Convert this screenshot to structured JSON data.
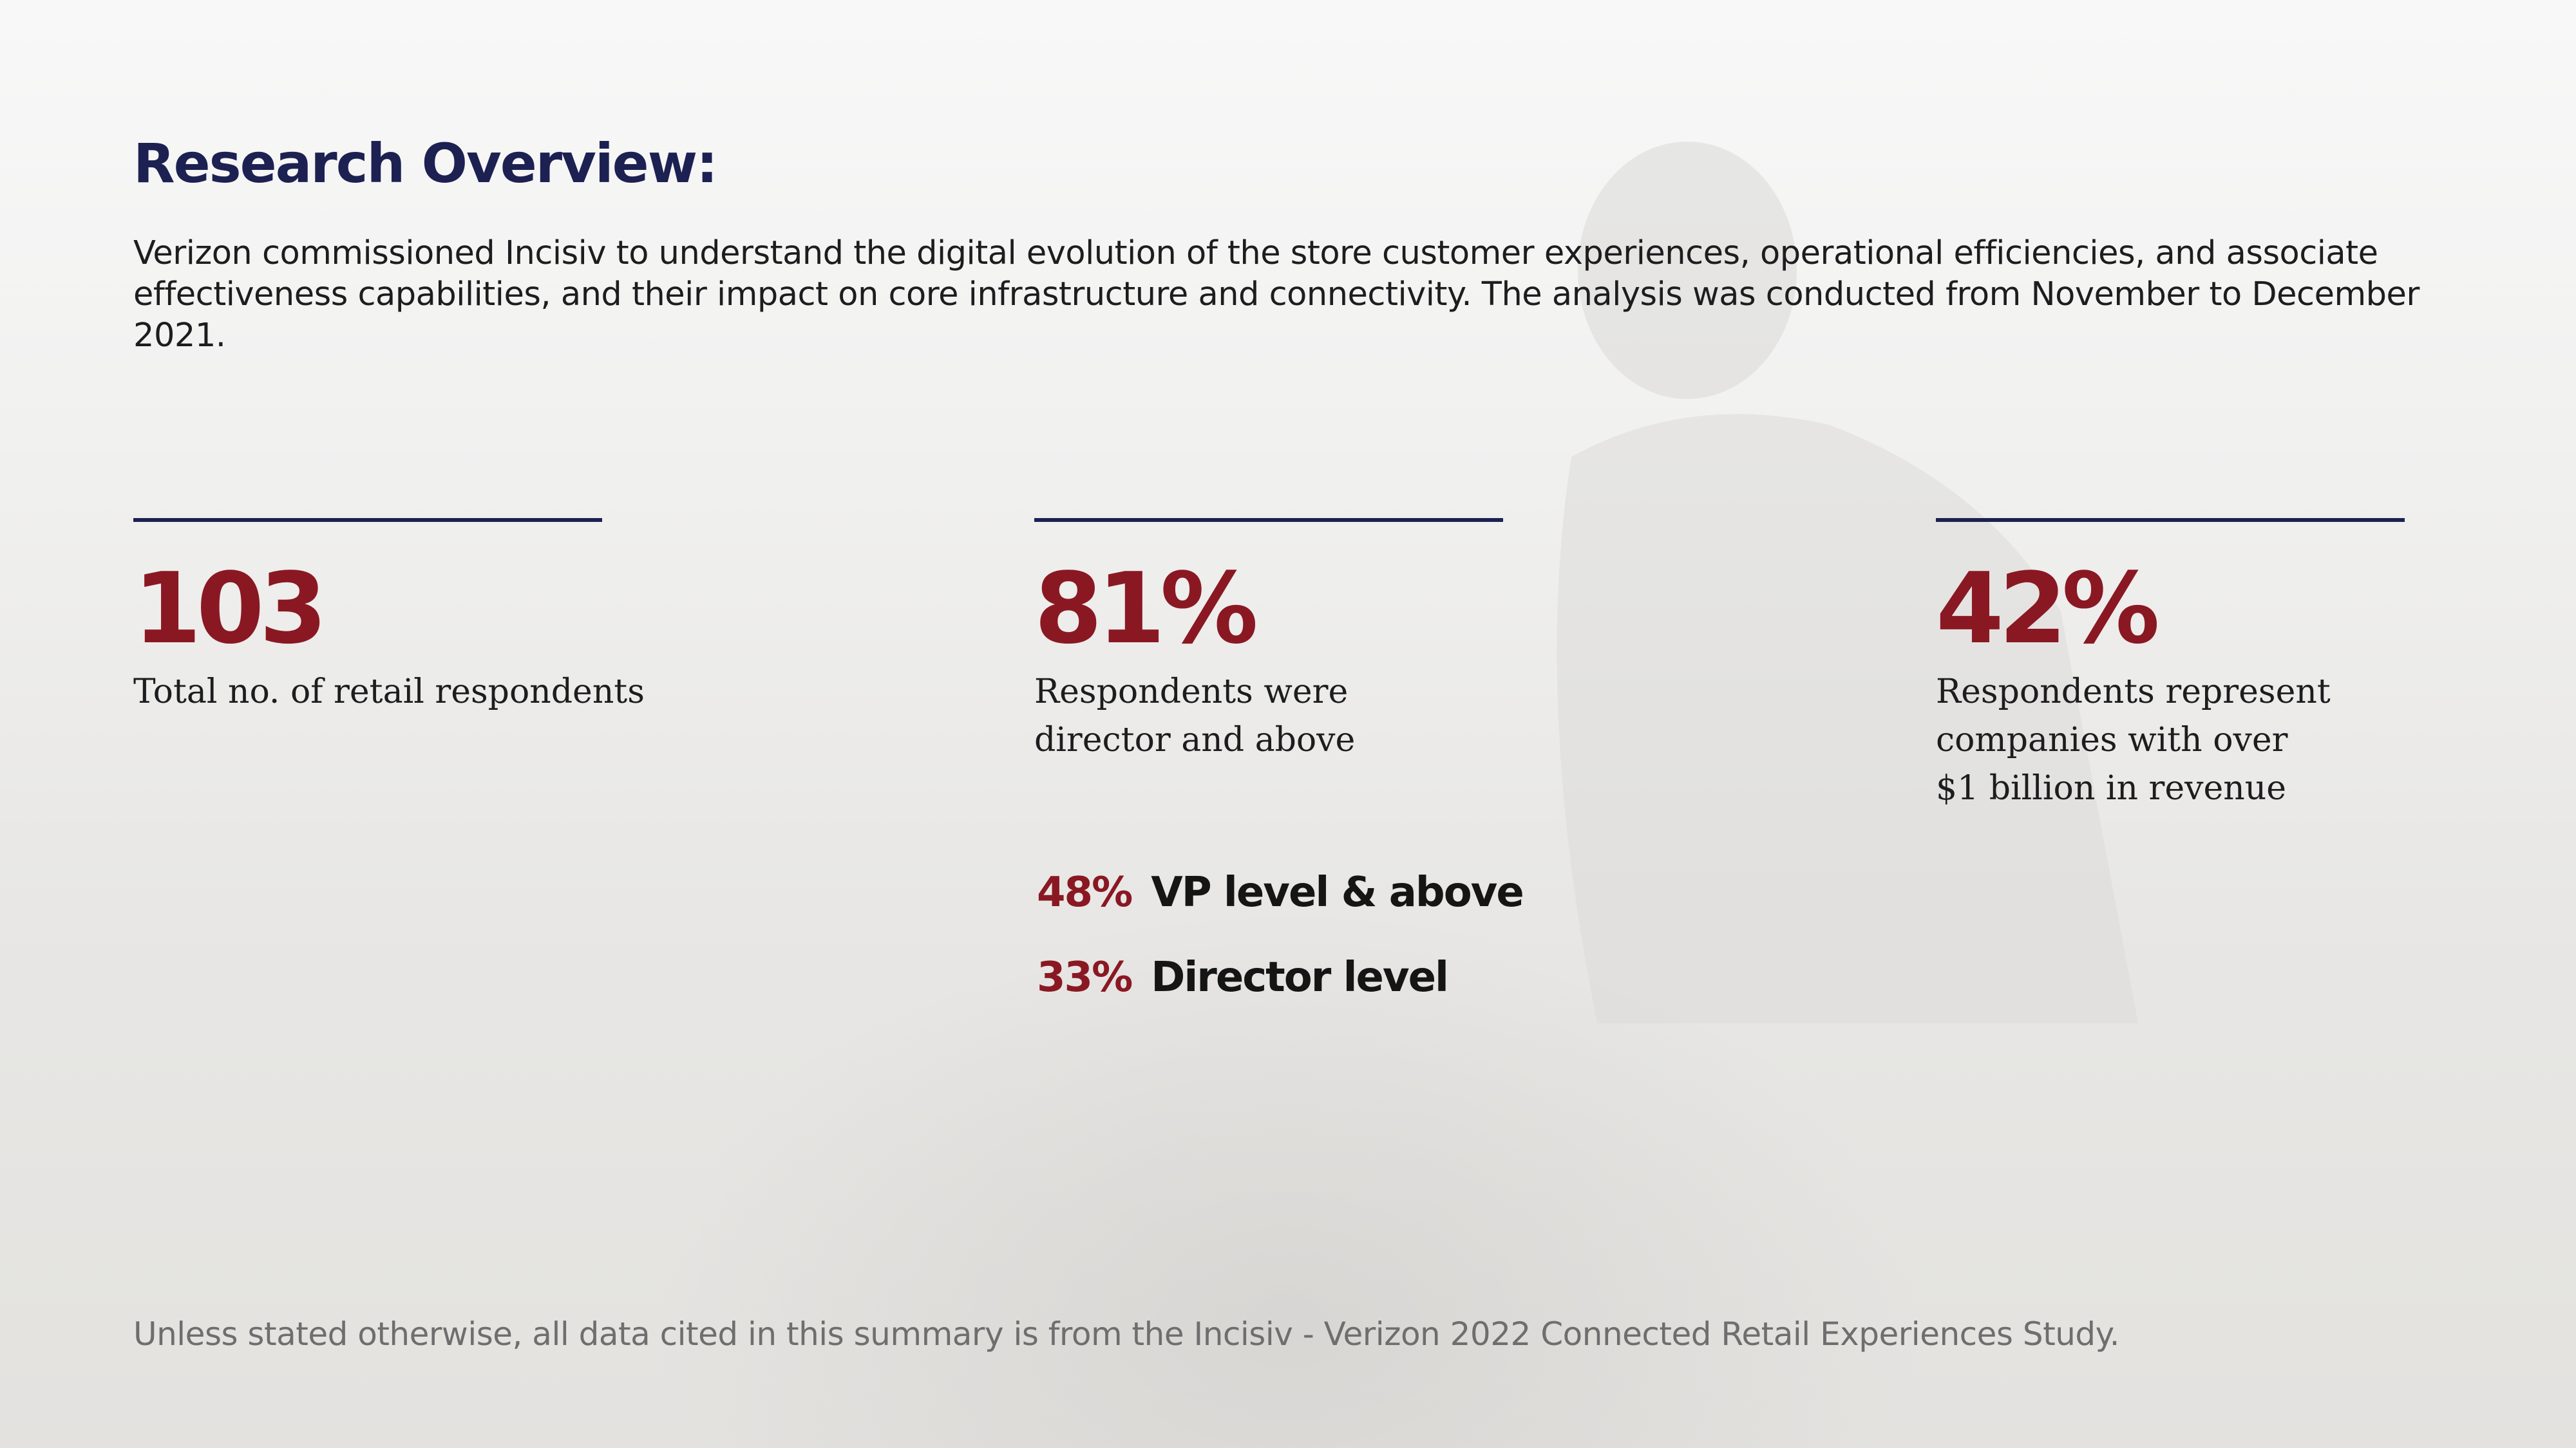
{
  "header": {
    "title": "Research Overview:"
  },
  "intro": {
    "text": "Verizon commissioned Incisiv to understand the digital evolution of the store customer experiences, operational efficiencies, and associate effectiveness capabilities, and their impact on core infrastructure and connectivity. The analysis was conducted from November to December 2021."
  },
  "stats": [
    {
      "value": "103",
      "label": "Total no. of retail respondents"
    },
    {
      "value": "81%",
      "label": "Respondents were\ndirector and above"
    },
    {
      "value": "42%",
      "label": "Respondents represent\ncompanies with over\n$1 billion in revenue"
    }
  ],
  "breakdown": [
    {
      "pct": "48%",
      "text": "VP  level & above"
    },
    {
      "pct": "33%",
      "text": "Director level"
    }
  ],
  "footnote": {
    "text": "Unless stated otherwise, all data cited in this summary is from the Incisiv - Verizon 2022 Connected Retail Experiences Study."
  },
  "colors": {
    "title": "#1c2152",
    "accent": "#8a1822",
    "rule": "#1c2152",
    "footnote": "#6e6e6e"
  }
}
